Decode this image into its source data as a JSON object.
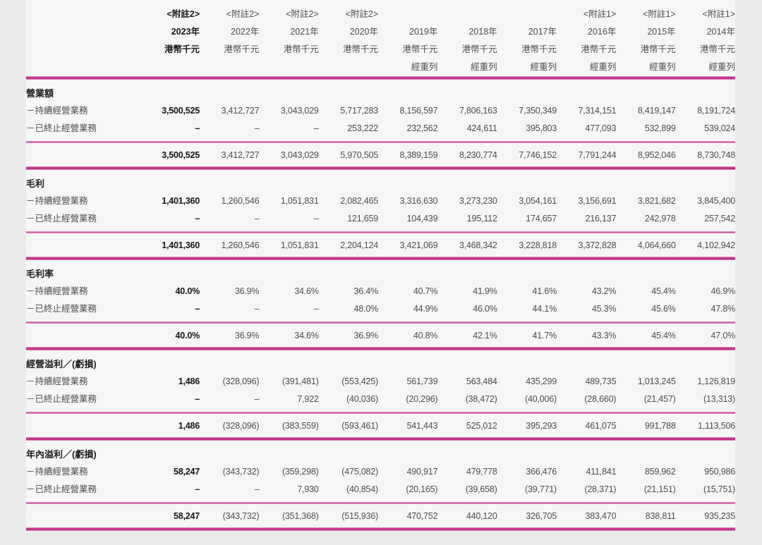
{
  "table": {
    "columns": [
      {
        "note": "<附註2>",
        "year": "2023年",
        "unit": "港幣千元",
        "restated": "",
        "bold": true
      },
      {
        "note": "<附註2>",
        "year": "2022年",
        "unit": "港幣千元",
        "restated": "",
        "bold": false
      },
      {
        "note": "<附註2>",
        "year": "2021年",
        "unit": "港幣千元",
        "restated": "",
        "bold": false
      },
      {
        "note": "<附註2>",
        "year": "2020年",
        "unit": "港幣千元",
        "restated": "",
        "bold": false
      },
      {
        "note": "",
        "year": "2019年",
        "unit": "港幣千元",
        "restated": "經重列",
        "bold": false
      },
      {
        "note": "",
        "year": "2018年",
        "unit": "港幣千元",
        "restated": "經重列",
        "bold": false
      },
      {
        "note": "",
        "year": "2017年",
        "unit": "港幣千元",
        "restated": "經重列",
        "bold": false
      },
      {
        "note": "<附註1>",
        "year": "2016年",
        "unit": "港幣千元",
        "restated": "經重列",
        "bold": false
      },
      {
        "note": "<附註1>",
        "year": "2015年",
        "unit": "港幣千元",
        "restated": "經重列",
        "bold": false
      },
      {
        "note": "<附註1>",
        "year": "2014年",
        "unit": "港幣千元",
        "restated": "經重列",
        "bold": false
      }
    ],
    "row_labels": {
      "continuing": "－持續經營業務",
      "discontinued": "－已終止經營業務"
    },
    "sections": [
      {
        "title": "營業額",
        "continuing": [
          "3,500,525",
          "3,412,727",
          "3,043,029",
          "5,717,283",
          "8,156,597",
          "7,806,163",
          "7,350,349",
          "7,314,151",
          "8,419,147",
          "8,191,724"
        ],
        "discontinued": [
          "–",
          "–",
          "–",
          "253,222",
          "232,562",
          "424,611",
          "395,803",
          "477,093",
          "532,899",
          "539,024"
        ],
        "total": [
          "3,500,525",
          "3,412,727",
          "3,043,029",
          "5,970,505",
          "8,389,159",
          "8,230,774",
          "7,746,152",
          "7,791,244",
          "8,952,046",
          "8,730,748"
        ]
      },
      {
        "title": "毛利",
        "continuing": [
          "1,401,360",
          "1,260,546",
          "1,051,831",
          "2,082,465",
          "3,316,630",
          "3,273,230",
          "3,054,161",
          "3,156,691",
          "3,821,682",
          "3,845,400"
        ],
        "discontinued": [
          "–",
          "–",
          "–",
          "121,659",
          "104,439",
          "195,112",
          "174,657",
          "216,137",
          "242,978",
          "257,542"
        ],
        "total": [
          "1,401,360",
          "1,260,546",
          "1,051,831",
          "2,204,124",
          "3,421,069",
          "3,468,342",
          "3,228,818",
          "3,372,828",
          "4,064,660",
          "4,102,942"
        ]
      },
      {
        "title": "毛利率",
        "continuing": [
          "40.0%",
          "36.9%",
          "34.6%",
          "36.4%",
          "40.7%",
          "41.9%",
          "41.6%",
          "43.2%",
          "45.4%",
          "46.9%"
        ],
        "discontinued": [
          "–",
          "–",
          "–",
          "48.0%",
          "44.9%",
          "46.0%",
          "44.1%",
          "45.3%",
          "45.6%",
          "47.8%"
        ],
        "total": [
          "40.0%",
          "36.9%",
          "34.6%",
          "36.9%",
          "40.8%",
          "42.1%",
          "41.7%",
          "43.3%",
          "45.4%",
          "47.0%"
        ]
      },
      {
        "title": "經營溢利／(虧損)",
        "continuing": [
          "1,486",
          "(328,096)",
          "(391,481)",
          "(553,425)",
          "561,739",
          "563,484",
          "435,299",
          "489,735",
          "1,013,245",
          "1,126,819"
        ],
        "discontinued": [
          "–",
          "–",
          "7,922",
          "(40,036)",
          "(20,296)",
          "(38,472)",
          "(40,006)",
          "(28,660)",
          "(21,457)",
          "(13,313)"
        ],
        "total": [
          "1,486",
          "(328,096)",
          "(383,559)",
          "(593,461)",
          "541,443",
          "525,012",
          "395,293",
          "461,075",
          "991,788",
          "1,113,506"
        ]
      },
      {
        "title": "年內溢利／(虧損)",
        "continuing": [
          "58,247",
          "(343,732)",
          "(359,298)",
          "(475,082)",
          "490,917",
          "479,778",
          "366,476",
          "411,841",
          "859,962",
          "950,986"
        ],
        "discontinued": [
          "–",
          "–",
          "7,930",
          "(40,854)",
          "(20,165)",
          "(39,658)",
          "(39,771)",
          "(28,371)",
          "(21,151)",
          "(15,751)"
        ],
        "total": [
          "58,247",
          "(343,732)",
          "(351,368)",
          "(515,936)",
          "470,752",
          "440,120",
          "326,705",
          "383,470",
          "838,811",
          "935,235"
        ]
      }
    ],
    "colors": {
      "rule_magenta": "#c02d88",
      "rule_light": "#eab6d7",
      "text": "#4c4c4c",
      "text_bold": "#141414",
      "background": "#ebebec"
    }
  }
}
